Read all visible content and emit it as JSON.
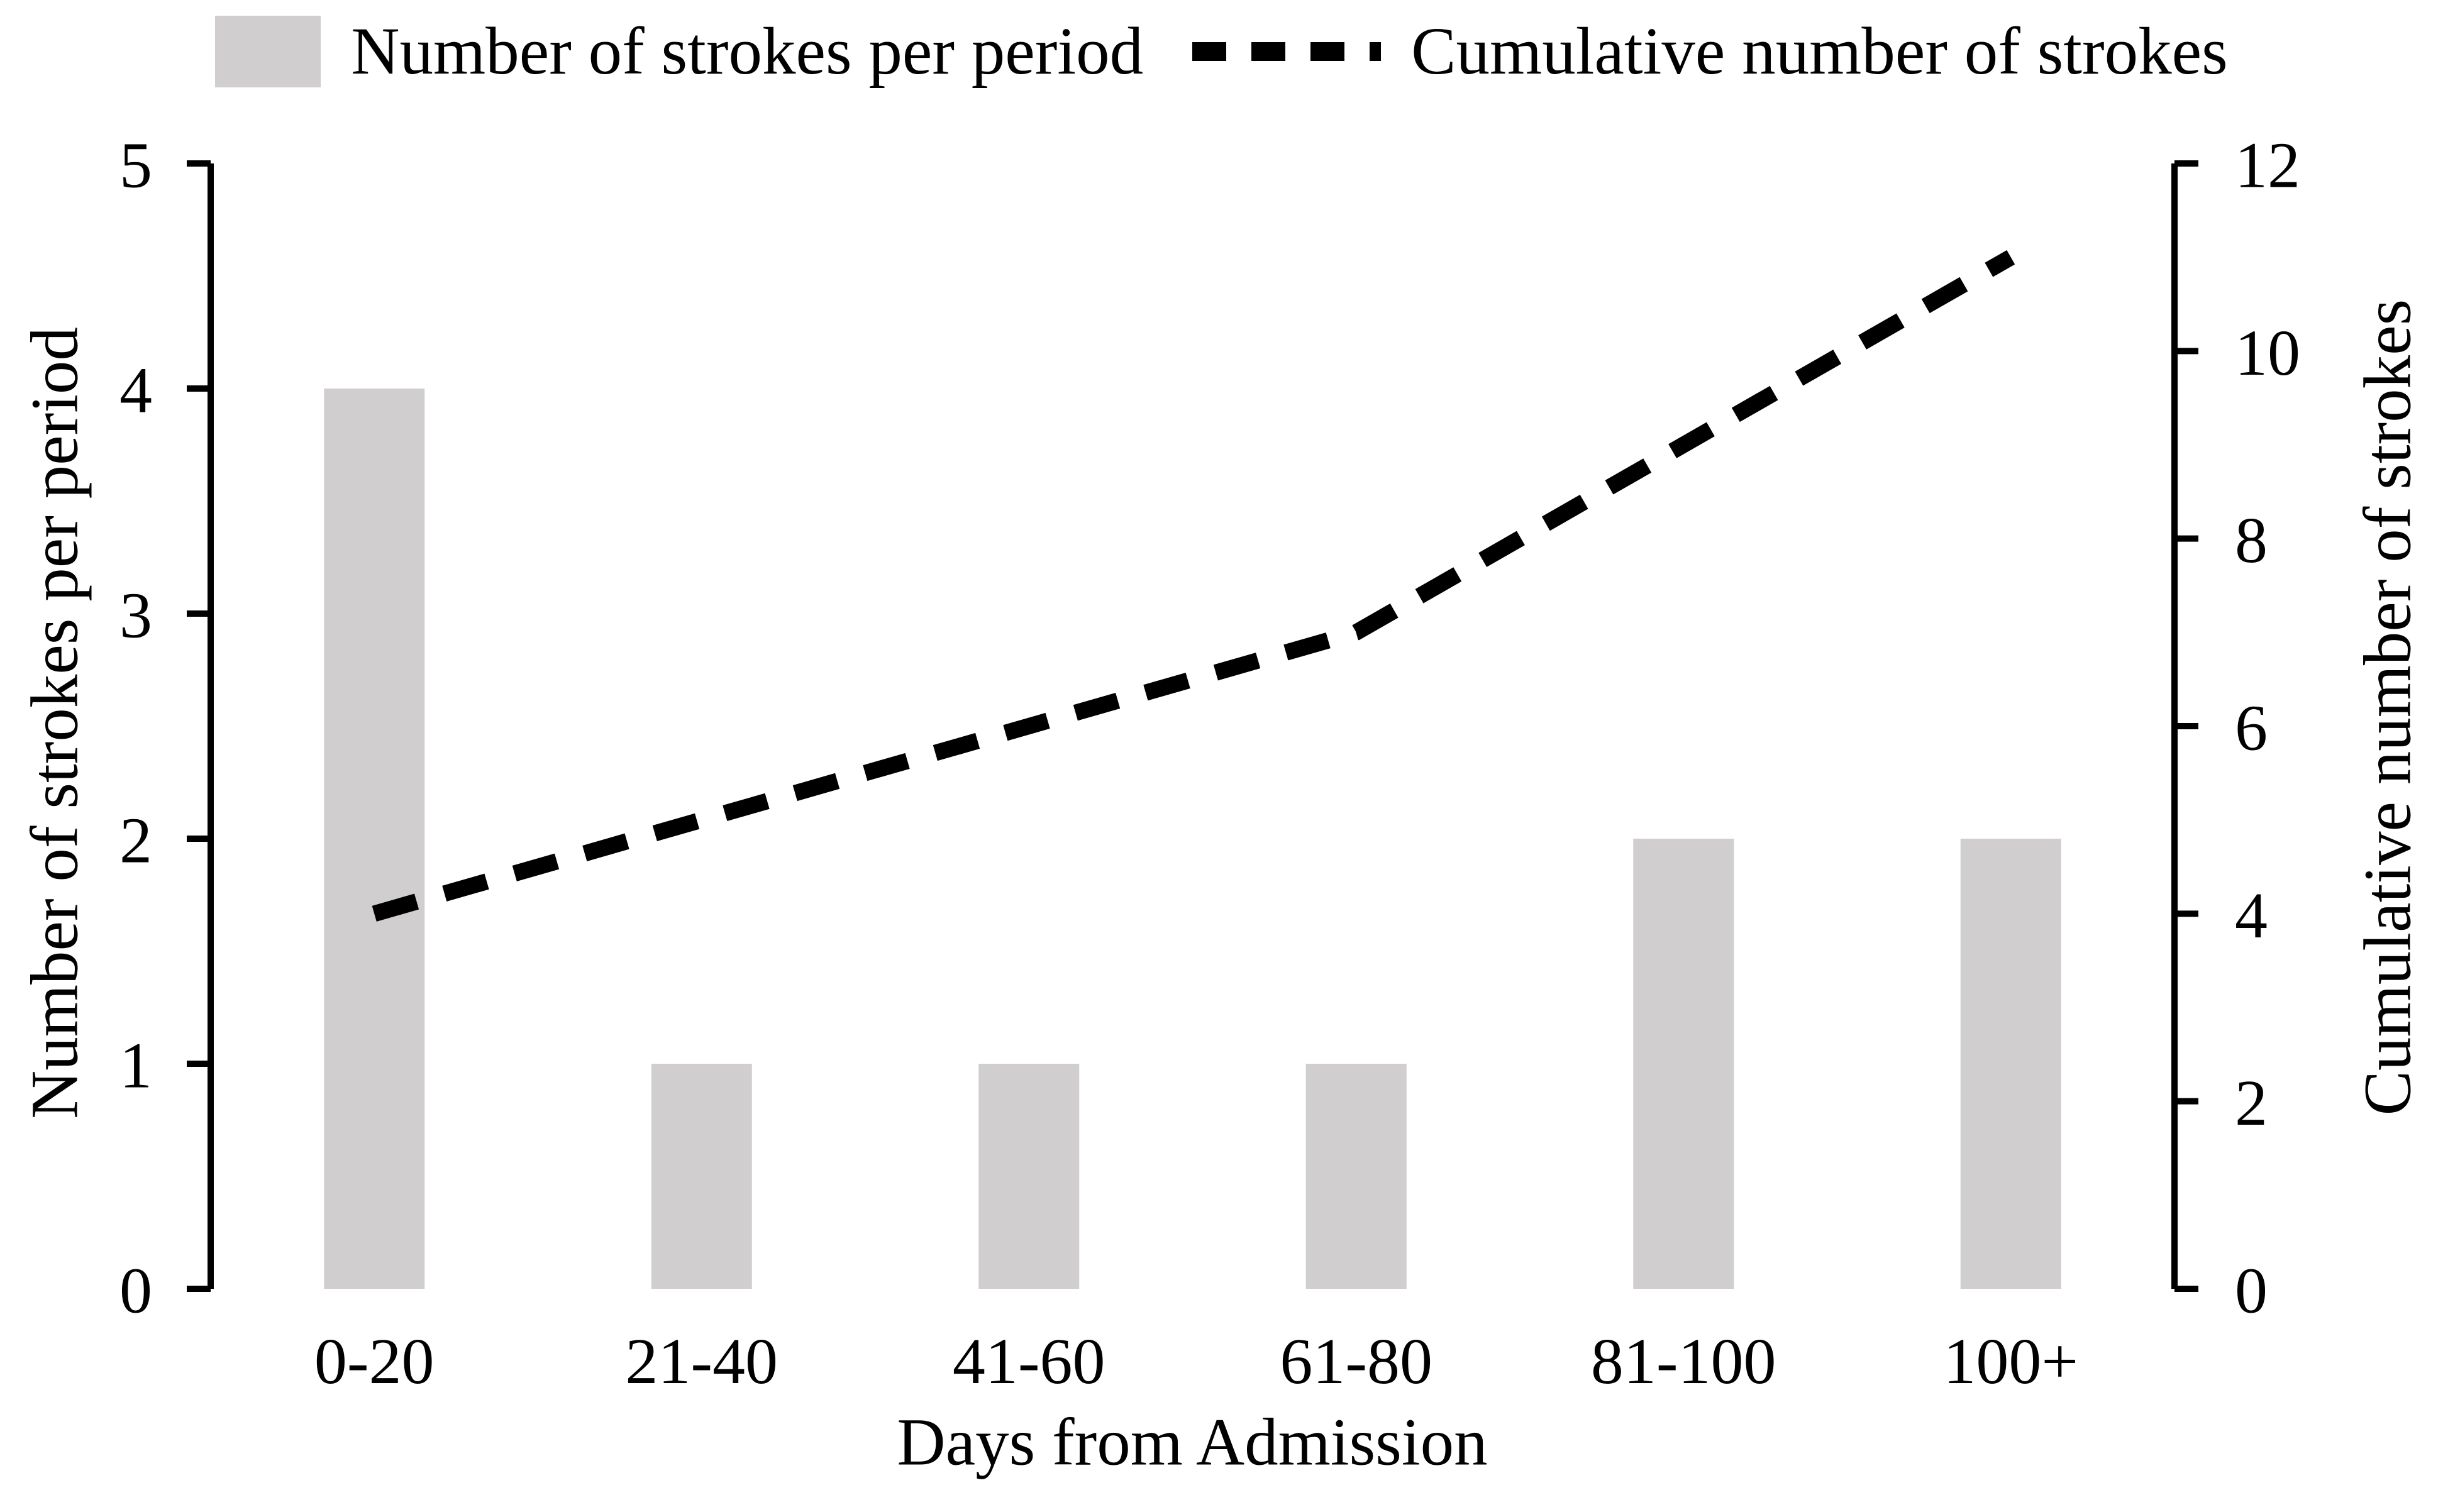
{
  "figure": {
    "background": "#ffffff",
    "text_color": "#000000"
  },
  "legend": {
    "position": "top",
    "items": [
      {
        "label": "Number of strokes per period",
        "swatch": "bar",
        "color": "#d0cece"
      },
      {
        "label": "Cumulative number of strokes",
        "swatch": "dashed-line",
        "color": "#000000"
      }
    ]
  },
  "chart_data": {
    "type": "bar",
    "subtype": "bar-line-combo",
    "categories": [
      "0-20",
      "21-40",
      "41-60",
      "61-80",
      "81-100",
      "100+"
    ],
    "series": [
      {
        "name": "Number of strokes per period",
        "type": "bar",
        "axis": "left",
        "values": [
          4,
          1,
          1,
          1,
          2,
          2
        ],
        "color": "#d0cece"
      },
      {
        "name": "Cumulative number of strokes",
        "type": "line",
        "axis": "right",
        "style": "dashed",
        "values": [
          4,
          5,
          6,
          7,
          9,
          11
        ],
        "color": "#000000"
      }
    ],
    "xlabel": "Days from Admission",
    "left_axis": {
      "label": "Number of strokes per period",
      "min": 0,
      "max": 5,
      "ticks": [
        0,
        1,
        2,
        3,
        4,
        5
      ]
    },
    "right_axis": {
      "label": "Cumulative number of strokes",
      "min": 0,
      "max": 12,
      "ticks": [
        0,
        2,
        4,
        6,
        8,
        10,
        12
      ]
    },
    "grid": false,
    "legend_position": "top"
  }
}
